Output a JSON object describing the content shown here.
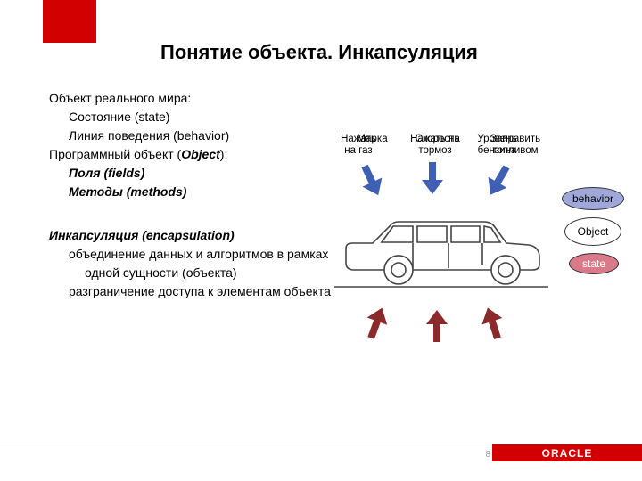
{
  "colors": {
    "oracle_red": "#d30000",
    "arrow_blue": "#3e5fb3",
    "arrow_darkred": "#8b2a2a",
    "text": "#000000",
    "footer_line": "#cccccc",
    "ell_behavior_bg": "#9fa8d8",
    "ell_object_bg": "#ffffff",
    "ell_state_bg": "#d97a8a",
    "car_stroke": "#444444"
  },
  "title": "Понятие объекта. Инкапсуляция",
  "text": {
    "l1": "Объект реального мира:",
    "l2": "Состояние (state)",
    "l3": "Линия поведения (behavior)",
    "l4_a": "Программный объект (",
    "l4_b": "Object",
    "l4_c": "):",
    "l5": "Поля (fields)",
    "l6": "Методы (methods)",
    "l7": "Инкапсуляция (encapsulation)",
    "l8": "объединение данных и алгоритмов в рамках одной сущности (объекта)",
    "l9": "разграничение доступа к элементам объекта"
  },
  "diagram": {
    "top_labels": {
      "gas": "Нажать\nна газ",
      "brake": "Нажать на\nтормоз",
      "fuel": "Заправить\nтопливом"
    },
    "bottom_labels": {
      "brand": "Марка",
      "speed": "Скорость",
      "level": "Уровень\nбензина"
    },
    "ellipses": {
      "behavior": "behavior",
      "object": "Object",
      "state": "state"
    }
  },
  "footer": {
    "brand": "ORACLE",
    "page": "8"
  }
}
